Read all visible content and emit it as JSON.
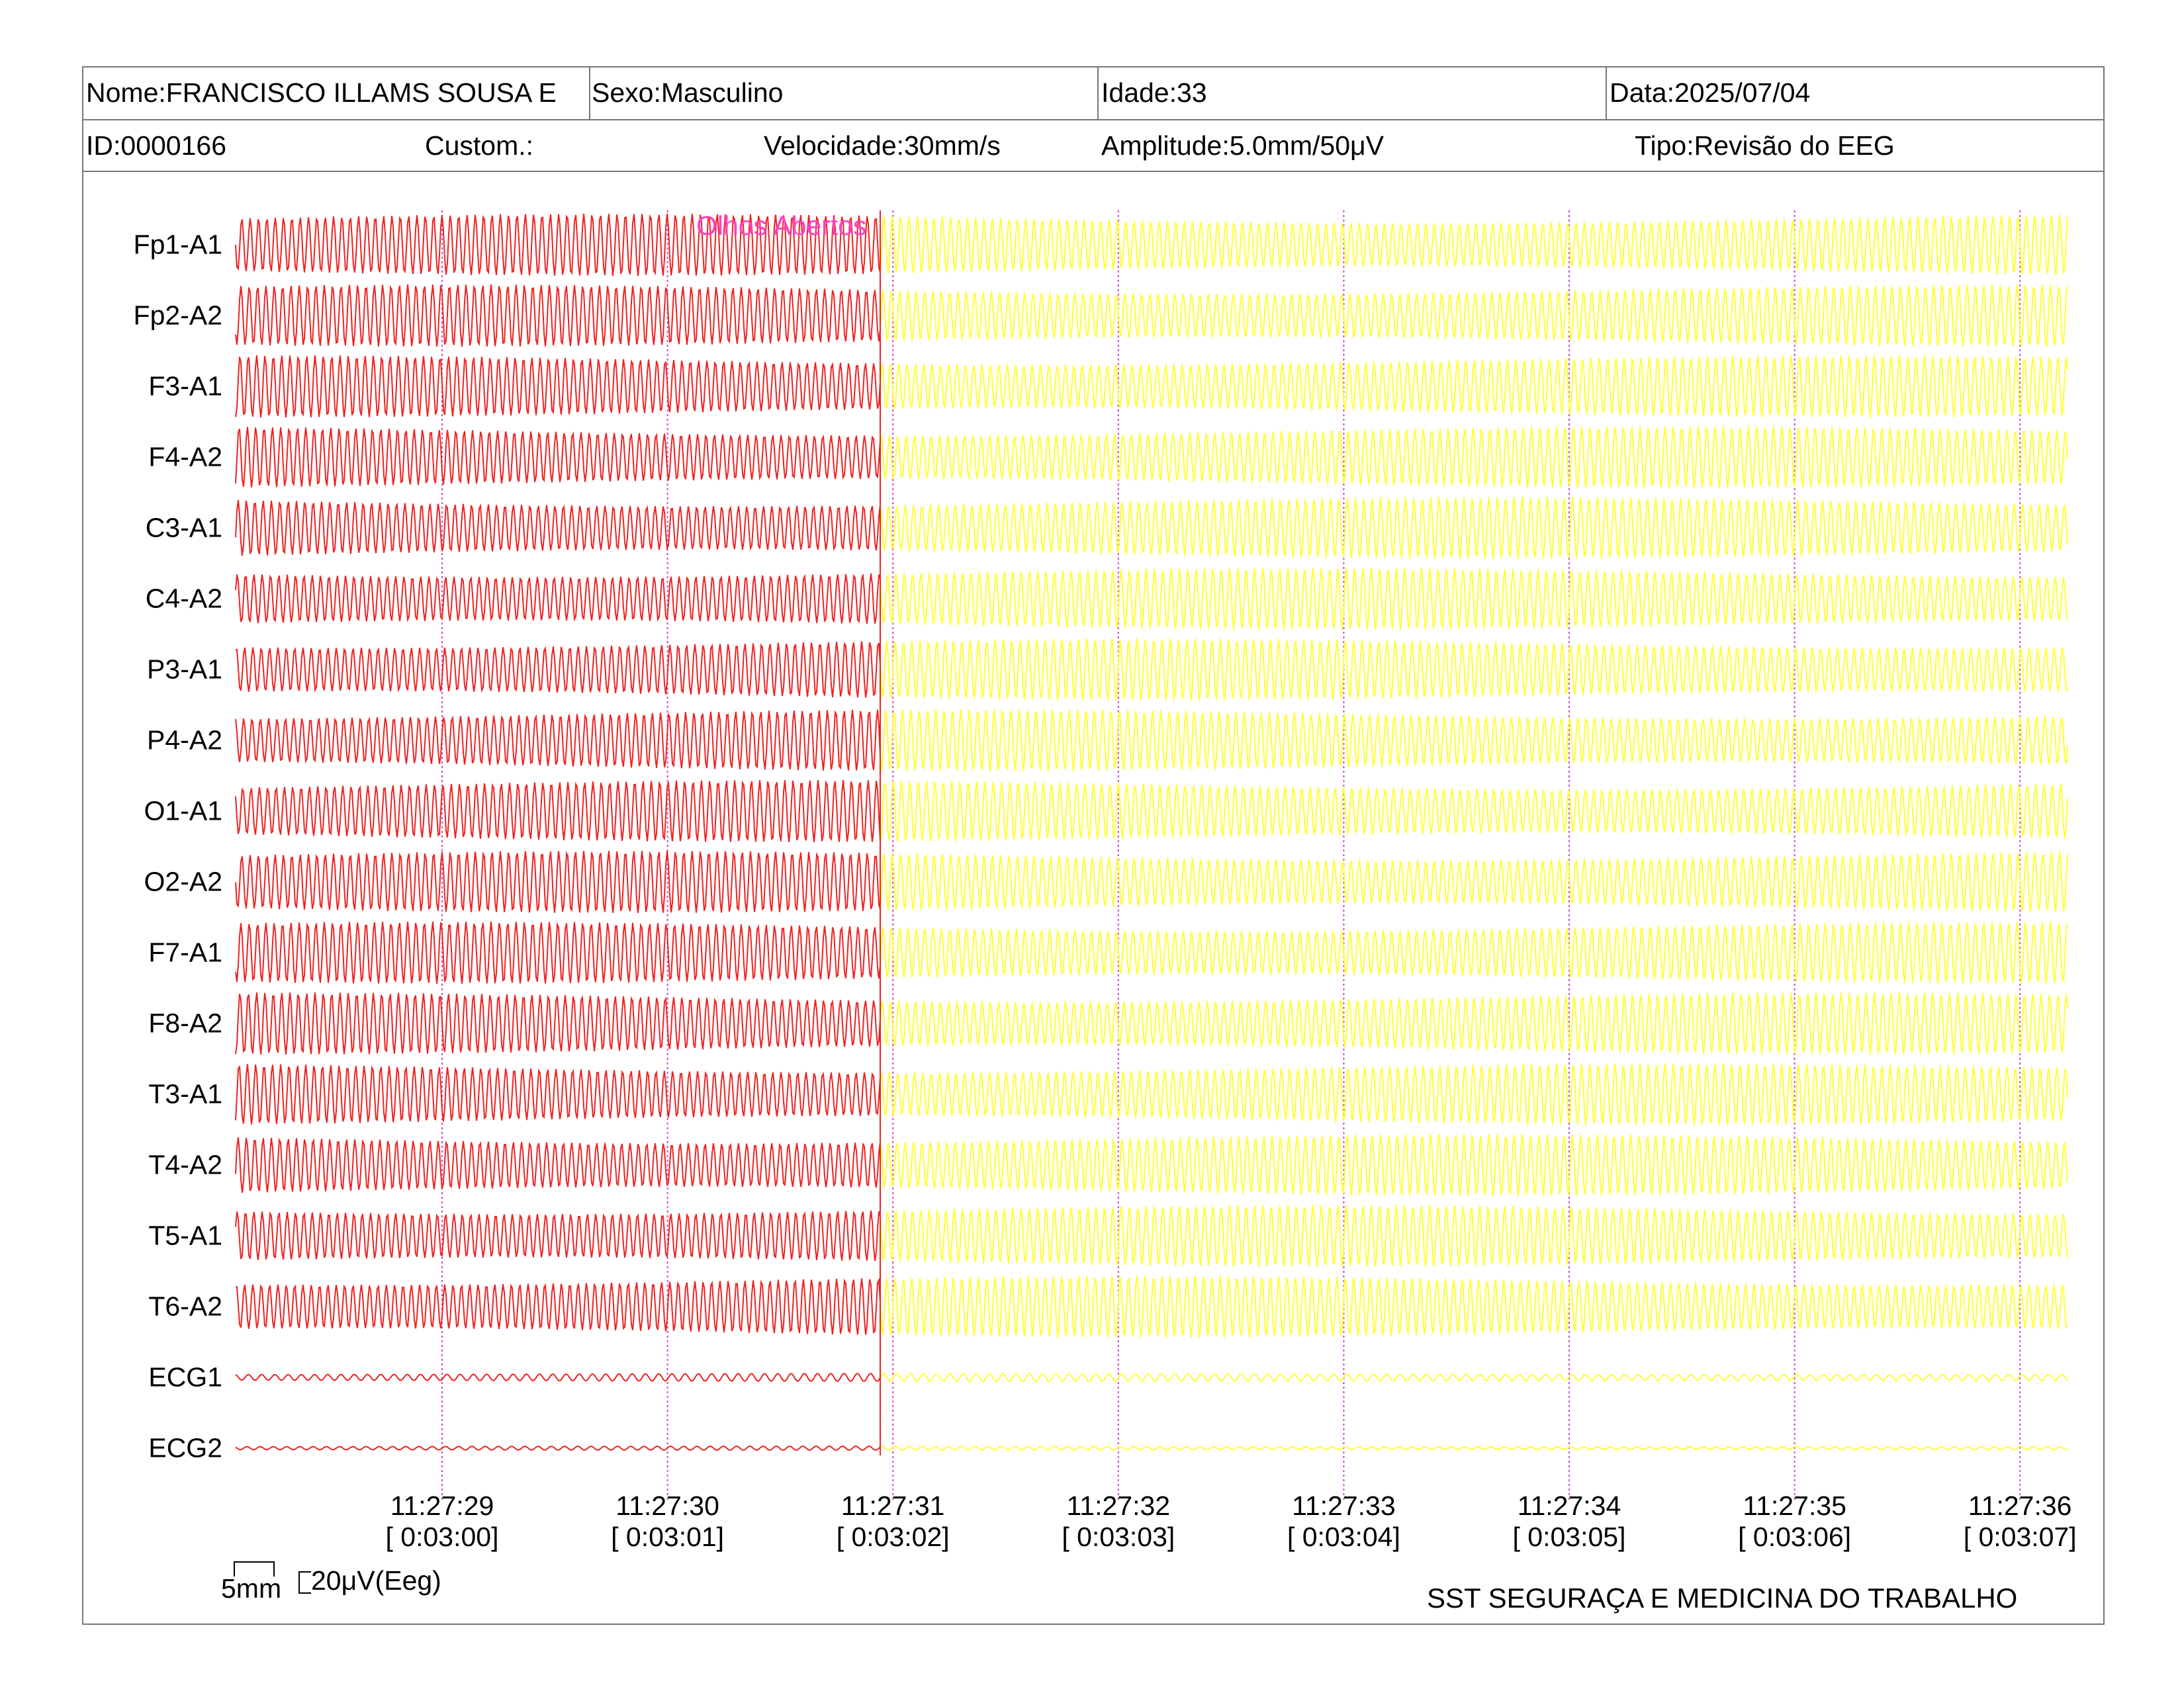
{
  "header": {
    "name": "Nome:FRANCISCO ILLAMS SOUSA E",
    "sex": "Sexo:Masculino",
    "age": "Idade:33",
    "date": "Data:2025/07/04",
    "id": "ID:0000166",
    "custom": "Custom.:",
    "speed": "Velocidade:30mm/s",
    "amplitude": "Amplitude:5.0mm/50μV",
    "type": "Tipo:Revisão do EEG"
  },
  "channels": [
    "Fp1-A1",
    "Fp2-A2",
    "F3-A1",
    "F4-A2",
    "C3-A1",
    "C4-A2",
    "P3-A1",
    "P4-A2",
    "O1-A1",
    "O2-A2",
    "F7-A1",
    "F8-A2",
    "T3-A1",
    "T4-A2",
    "T5-A1",
    "T6-A2",
    "ECG1",
    "ECG2"
  ],
  "event_marker": "Olhos Abertos",
  "time_marks": [
    {
      "clock": "11:27:29",
      "elapsed": "[ 0:03:00]"
    },
    {
      "clock": "11:27:30",
      "elapsed": "[ 0:03:01]"
    },
    {
      "clock": "11:27:31",
      "elapsed": "[ 0:03:02]"
    },
    {
      "clock": "11:27:32",
      "elapsed": "[ 0:03:03]"
    },
    {
      "clock": "11:27:33",
      "elapsed": "[ 0:03:04]"
    },
    {
      "clock": "11:27:34",
      "elapsed": "[ 0:03:05]"
    },
    {
      "clock": "11:27:35",
      "elapsed": "[ 0:03:06]"
    },
    {
      "clock": "11:27:36",
      "elapsed": "[ 0:03:07]"
    }
  ],
  "scale": {
    "time_label": "5mm",
    "amp_label": "20μV(Eeg)"
  },
  "footer": {
    "institution": "SST SEGURAÇA E MEDICINA DO TRABALHO"
  },
  "colors": {
    "trace_before_marker": "#ee2222",
    "trace_after_marker": "#ffff33",
    "time_grid": "#cc44cc",
    "marker_text": "#ff40c0"
  }
}
